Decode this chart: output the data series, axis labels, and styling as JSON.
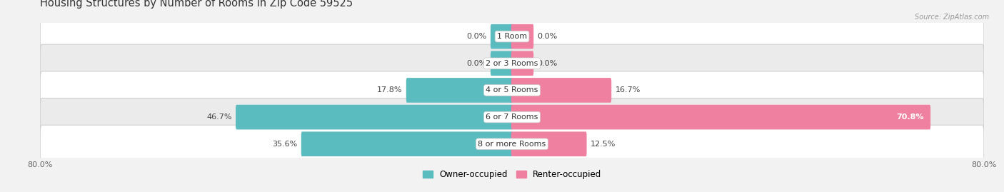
{
  "title": "Housing Structures by Number of Rooms in Zip Code 59525",
  "source": "Source: ZipAtlas.com",
  "categories": [
    "1 Room",
    "2 or 3 Rooms",
    "4 or 5 Rooms",
    "6 or 7 Rooms",
    "8 or more Rooms"
  ],
  "owner_values": [
    0.0,
    0.0,
    17.8,
    46.7,
    35.6
  ],
  "renter_values": [
    0.0,
    0.0,
    16.7,
    70.8,
    12.5
  ],
  "owner_color": "#5bbcbf",
  "renter_color": "#f080a0",
  "axis_min": -80.0,
  "axis_max": 80.0,
  "background_color": "#f2f2f2",
  "row_colors": [
    "#ffffff",
    "#ebebeb"
  ],
  "legend_owner": "Owner-occupied",
  "legend_renter": "Renter-occupied",
  "title_fontsize": 10.5,
  "label_fontsize": 8.0,
  "cat_fontsize": 8.0
}
